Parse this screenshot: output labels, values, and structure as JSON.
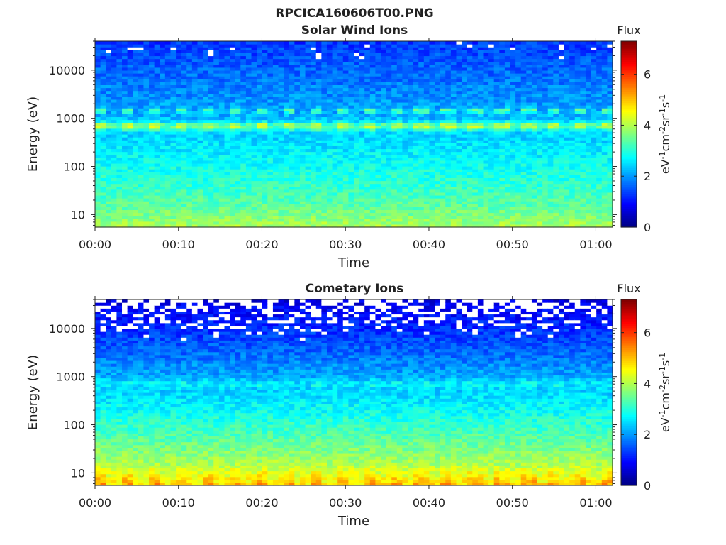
{
  "figure": {
    "title": "RPCICA160606T00.PNG"
  },
  "chart_data": [
    {
      "type": "heatmap",
      "title": "Solar Wind Ions",
      "xlabel": "Time",
      "ylabel": "Energy (eV)",
      "x_ticks": [
        "00:00",
        "00:10",
        "00:20",
        "00:30",
        "00:40",
        "00:50",
        "01:00"
      ],
      "xlim_minutes": [
        0,
        62
      ],
      "y_scale": "log",
      "y_ticks": [
        10,
        100,
        1000,
        10000
      ],
      "y_tick_labels": [
        "10",
        "100",
        "1000",
        "10000"
      ],
      "ylim": [
        5.5,
        40000
      ],
      "colorbar": {
        "label_top": "Flux",
        "label_units": "eV-1cm-2sr-1s-1",
        "range": [
          0,
          7.3
        ],
        "ticks": [
          0,
          2,
          4,
          6
        ],
        "tick_labels": [
          "0",
          "2",
          "4",
          "6"
        ],
        "colormap": "jet"
      },
      "features": {
        "peak_energy_eV": 700,
        "secondary_peak_energy_eV": 1450,
        "peak_flux": 4.3,
        "low_energy_flux": 3.8,
        "high_energy_flux": 1.3,
        "pulse_period_minutes": 3.2
      }
    },
    {
      "type": "heatmap",
      "title": "Cometary Ions",
      "xlabel": "Time",
      "ylabel": "Energy (eV)",
      "x_ticks": [
        "00:00",
        "00:10",
        "00:20",
        "00:30",
        "00:40",
        "00:50",
        "01:00"
      ],
      "xlim_minutes": [
        0,
        62
      ],
      "y_scale": "log",
      "y_ticks": [
        10,
        100,
        1000,
        10000
      ],
      "y_tick_labels": [
        "10",
        "100",
        "1000",
        "10000"
      ],
      "ylim": [
        5.5,
        40000
      ],
      "colorbar": {
        "label_top": "Flux",
        "label_units": "eV-1cm-2sr-1s-1",
        "range": [
          0,
          7.3
        ],
        "ticks": [
          0,
          2,
          4,
          6
        ],
        "tick_labels": [
          "0",
          "2",
          "4",
          "6"
        ],
        "colormap": "jet"
      },
      "features": {
        "peak_energy_eV": 700,
        "peak_flux": 2.8,
        "low_energy_flux": 4.6,
        "high_energy_flux": 0.7,
        "pulse_period_minutes": 3.2
      }
    }
  ]
}
